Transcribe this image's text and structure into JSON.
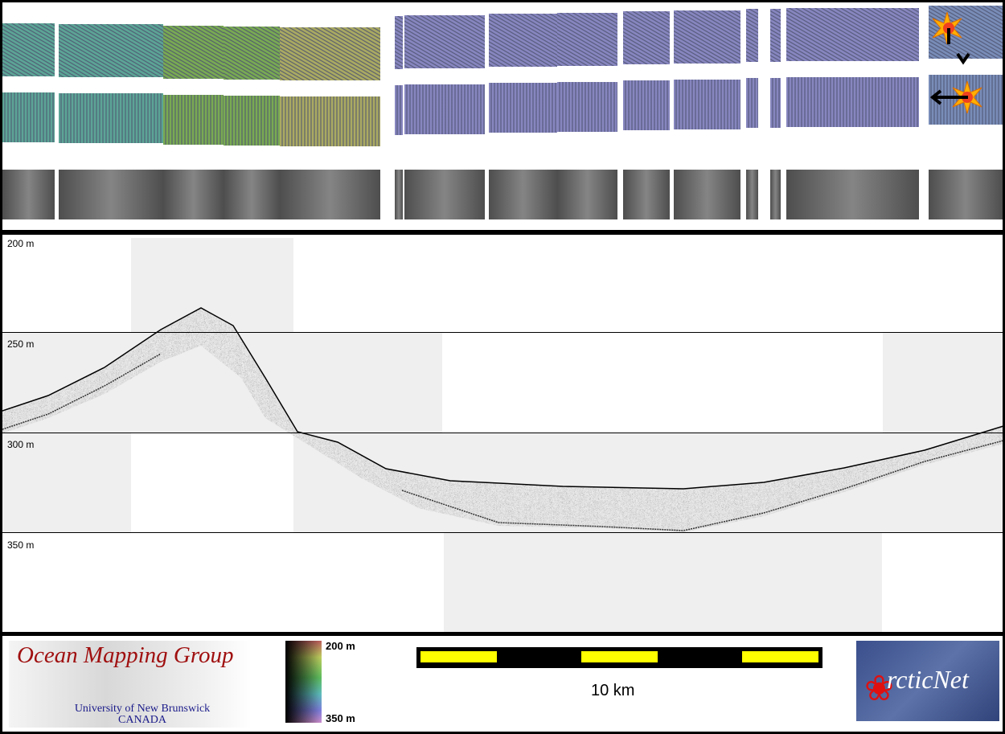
{
  "depth_labels": [
    "200 m",
    "250 m",
    "300 m",
    "350 m"
  ],
  "illumination_icons": [
    "sun-light-from-north",
    "sun-light-from-east"
  ],
  "legend": {
    "logo_title": "Ocean Mapping Group",
    "logo_subtitle": "University of New Brunswick",
    "logo_country": "CANADA",
    "colorbar_top": "200 m",
    "colorbar_bottom": "350 m",
    "scale_label": "10 km",
    "partner_logo": "ArcticNet"
  },
  "colors": {
    "scale_yellow": "#ffff00",
    "profile_line": "#000000"
  }
}
